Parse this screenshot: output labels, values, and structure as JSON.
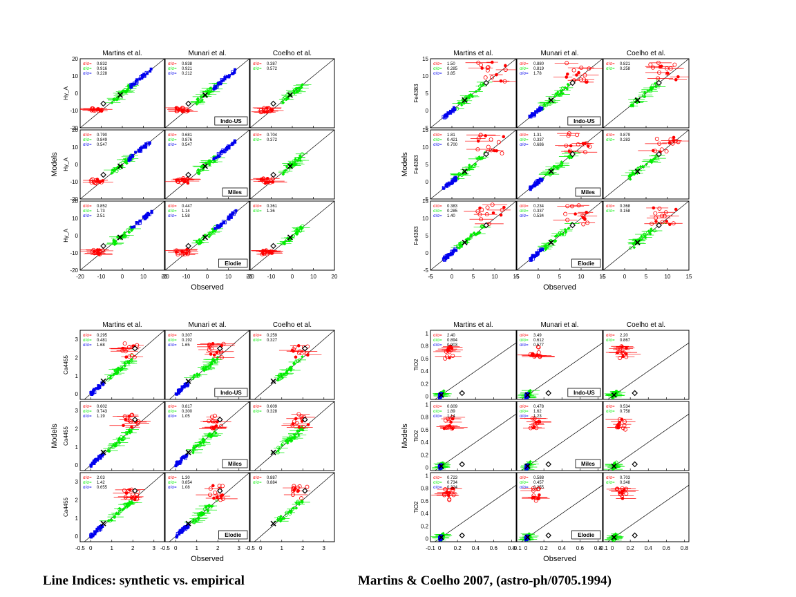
{
  "caption": {
    "left": "Line Indices: synthetic vs. empirical",
    "right": "Martins & Coelho 2007, (astro-ph/0705.1994)"
  },
  "colors": {
    "red": "#ff0000",
    "green": "#00ee00",
    "blue": "#0000ee",
    "black": "#000000"
  },
  "chart_data": [
    {
      "type": "scatter",
      "index": "Hγ_A",
      "ylabel_panel": "Hγ_A",
      "xlabel": "Observed",
      "ylabel": "Models",
      "columns": [
        "Martins et al.",
        "Munari et al.",
        "Coelho et al."
      ],
      "rows": [
        "Indo-US",
        "Miles",
        "Elodie"
      ],
      "xlim": [
        -20,
        20
      ],
      "ylim": [
        -20,
        20
      ],
      "xticks": [
        -10,
        0,
        10,
        20
      ],
      "yticks": [
        -20,
        -10,
        0,
        10,
        20
      ],
      "sigma_label": "σ/σ=",
      "stats": [
        [
          [
            "0.832",
            "0.916",
            "0.228"
          ],
          [
            "0.838",
            "0.921",
            "0.212"
          ],
          [
            "0.387",
            "0.572"
          ]
        ],
        [
          [
            "0.790",
            "0.849",
            "0.547"
          ],
          [
            "0.681",
            "0.876",
            "0.547"
          ],
          [
            "0.704",
            "0.372"
          ]
        ],
        [
          [
            "0.852",
            "1.73",
            "2.51"
          ],
          [
            "0.447",
            "1.14",
            "1.58"
          ],
          [
            "0.361",
            "1.36"
          ]
        ]
      ],
      "groups": {
        "red": [
          -9,
          -15,
          -8,
          -11
        ],
        "green": [
          -5,
          5,
          -4,
          6
        ],
        "blue": [
          3,
          14,
          2,
          14
        ]
      },
      "markers": {
        "diamond": [
          -9,
          -6
        ],
        "cross": [
          -1,
          -1
        ]
      }
    },
    {
      "type": "scatter",
      "index": "Fe4383",
      "ylabel_panel": "Fe4383",
      "xlabel": "Observed",
      "ylabel": "Models",
      "columns": [
        "Martins et al.",
        "Munari et al.",
        "Coelho et al."
      ],
      "rows": [
        "Indo-US",
        "Miles",
        "Elodie"
      ],
      "xlim": [
        -5,
        15
      ],
      "ylim": [
        -5,
        15
      ],
      "xticks": [
        -5,
        0,
        5,
        10,
        15
      ],
      "yticks": [
        -5,
        0,
        5,
        10,
        15
      ],
      "sigma_label": "σ/σ=",
      "stats": [
        [
          [
            "1.50",
            "0.285",
            "3.85"
          ],
          [
            "0.880",
            "0.819",
            "1.78"
          ],
          [
            "0.821",
            "0.258"
          ]
        ],
        [
          [
            "1.81",
            "0.421",
            "0.700"
          ],
          [
            "1.31",
            "0.337",
            "0.686"
          ],
          [
            "0.879",
            "0.283"
          ]
        ],
        [
          [
            "0.383",
            "0.285",
            "1.40"
          ],
          [
            "0.234",
            "0.337",
            "0.534"
          ],
          [
            "0.368",
            "0.158"
          ]
        ]
      ],
      "groups": {
        "red": [
          6,
          12,
          8,
          14
        ],
        "green": [
          1,
          8,
          2,
          9
        ],
        "blue": [
          -2,
          1,
          -2,
          1
        ]
      },
      "markers": {
        "diamond": [
          8,
          8
        ],
        "cross": [
          3,
          3
        ]
      }
    },
    {
      "type": "scatter",
      "index": "Ca4455",
      "ylabel_panel": "Ca4455",
      "xlabel": "Observed",
      "ylabel": "Models",
      "columns": [
        "Martins et al.",
        "Munari et al.",
        "Coelho et al."
      ],
      "rows": [
        "Indo-US",
        "Miles",
        "Elodie"
      ],
      "xlim": [
        -0.5,
        3.5
      ],
      "ylim": [
        -0.3,
        3.5
      ],
      "xticks": [
        0,
        1,
        2,
        3
      ],
      "yticks": [
        0,
        1,
        2,
        3
      ],
      "sigma_label": "σ/σ=",
      "stats": [
        [
          [
            "0.295",
            "0.481",
            "1.68"
          ],
          [
            "0.307",
            "0.192",
            "1.65"
          ],
          [
            "0.259",
            "0.327"
          ]
        ],
        [
          [
            "0.602",
            "0.743",
            "1.19"
          ],
          [
            "0.817",
            "0.300",
            "1.05"
          ],
          [
            "0.609",
            "0.328"
          ]
        ],
        [
          [
            "2.03",
            "1.42",
            "0.655"
          ],
          [
            "1.30",
            "0.854",
            "1.08"
          ],
          [
            "0.887",
            "0.884"
          ]
        ]
      ],
      "groups": {
        "red": [
          1.5,
          2.2,
          2.0,
          2.8
        ],
        "green": [
          0.8,
          2.0,
          0.8,
          2.0
        ],
        "blue": [
          0,
          0.6,
          0,
          0.5
        ]
      },
      "markers": {
        "diamond": [
          2.1,
          2.5
        ],
        "cross": [
          0.6,
          0.7
        ]
      }
    },
    {
      "type": "scatter",
      "index": "TiO2",
      "ylabel_panel": "TiO2",
      "xlabel": "Observed",
      "ylabel": "Models",
      "columns": [
        "Martins et al.",
        "Munari et al.",
        "Coelho et al."
      ],
      "rows": [
        "Indo-US",
        "Miles",
        "Elodie"
      ],
      "xlim": [
        -0.1,
        0.85
      ],
      "ylim": [
        -0.05,
        1.05
      ],
      "xticks": [
        0.0,
        0.2,
        0.4,
        0.6,
        0.8
      ],
      "yticks": [
        0.0,
        0.2,
        0.4,
        0.6,
        0.8,
        1.0
      ],
      "sigma_label": "σ/σ=",
      "stats": [
        [
          [
            "2.40",
            "0.894",
            "0.903"
          ],
          [
            "3.49",
            "0.612",
            "0.577"
          ],
          [
            "2.20",
            "0.867"
          ]
        ],
        [
          [
            "0.609",
            "1.89",
            "1.14"
          ],
          [
            "0.478",
            "1.62",
            "1.23"
          ],
          [
            "0.534",
            "0.758"
          ]
        ],
        [
          [
            "0.723",
            "0.734",
            "0.324"
          ],
          [
            "0.588",
            "0.457",
            "0.255"
          ],
          [
            "0.703",
            "0.348"
          ]
        ]
      ],
      "groups": {
        "red": [
          0.05,
          0.15,
          0.6,
          0.8
        ],
        "green": [
          0.0,
          0.05,
          0.0,
          0.05
        ],
        "blue": [
          0,
          0.02,
          0,
          0.02
        ]
      },
      "markers": {
        "diamond": [
          0.25,
          0.05
        ],
        "cross": [
          0.02,
          0.02
        ]
      }
    }
  ]
}
